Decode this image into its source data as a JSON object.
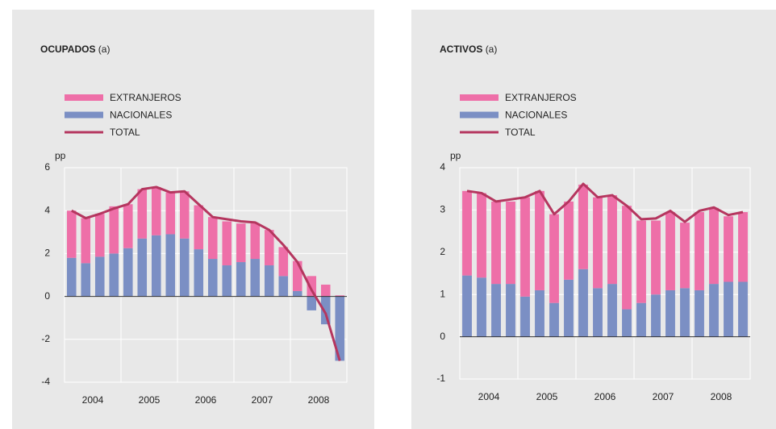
{
  "chart_data": [
    {
      "type": "stacked_bar_line",
      "title": "OCUPADOS",
      "title_note": "(a)",
      "ylabel": "pp",
      "categories": [
        "2004",
        null,
        null,
        null,
        "2005",
        null,
        null,
        null,
        "2006",
        null,
        null,
        null,
        "2007",
        null,
        null,
        null,
        "2008",
        null,
        null,
        null
      ],
      "series": [
        {
          "name": "EXTRANJEROS",
          "type": "bar",
          "color": "#ee6fa8",
          "values": [
            2.2,
            2.1,
            2.0,
            2.2,
            2.05,
            2.3,
            2.25,
            1.95,
            2.2,
            2.05,
            1.95,
            2.05,
            1.8,
            1.65,
            1.65,
            1.35,
            1.4,
            0.95,
            0.55,
            0.05
          ]
        },
        {
          "name": "NACIONALES",
          "type": "bar",
          "color": "#7b8fc4",
          "values": [
            1.8,
            1.55,
            1.85,
            2.0,
            2.25,
            2.7,
            2.85,
            2.9,
            2.7,
            2.2,
            1.75,
            1.45,
            1.6,
            1.75,
            1.45,
            0.95,
            0.25,
            -0.65,
            -1.3,
            -3.0
          ]
        },
        {
          "name": "TOTAL",
          "type": "line",
          "color": "#b5365f",
          "values": [
            4.0,
            3.65,
            3.85,
            4.1,
            4.3,
            5.0,
            5.1,
            4.85,
            4.9,
            4.3,
            3.7,
            3.6,
            3.5,
            3.45,
            3.1,
            2.4,
            1.6,
            0.3,
            -0.8,
            -3.0
          ]
        }
      ],
      "ylim": [
        -4,
        6
      ],
      "yticks": [
        -4,
        -2,
        0,
        2,
        4,
        6
      ],
      "grid": true
    },
    {
      "type": "stacked_bar_line",
      "title": "ACTIVOS",
      "title_note": "(a)",
      "ylabel": "pp",
      "categories": [
        "2004",
        null,
        null,
        null,
        "2005",
        null,
        null,
        null,
        "2006",
        null,
        null,
        null,
        "2007",
        null,
        null,
        null,
        "2008",
        null,
        null,
        null
      ],
      "series": [
        {
          "name": "EXTRANJEROS",
          "type": "bar",
          "color": "#ee6fa8",
          "values": [
            2.0,
            2.0,
            1.95,
            1.95,
            2.35,
            2.35,
            2.1,
            1.85,
            2.0,
            2.15,
            2.1,
            2.45,
            1.95,
            1.75,
            1.85,
            1.55,
            1.85,
            1.8,
            1.55,
            1.65
          ]
        },
        {
          "name": "NACIONALES",
          "type": "bar",
          "color": "#7b8fc4",
          "values": [
            1.45,
            1.4,
            1.25,
            1.25,
            0.95,
            1.1,
            0.8,
            1.35,
            1.6,
            1.15,
            1.25,
            0.65,
            0.8,
            1.0,
            1.1,
            1.15,
            1.1,
            1.25,
            1.3,
            1.3
          ]
        },
        {
          "name": "TOTAL",
          "type": "line",
          "color": "#b5365f",
          "values": [
            3.45,
            3.4,
            3.2,
            3.25,
            3.3,
            3.45,
            2.9,
            3.2,
            3.62,
            3.3,
            3.35,
            3.1,
            2.78,
            2.8,
            2.98,
            2.72,
            2.98,
            3.06,
            2.88,
            2.95
          ]
        }
      ],
      "ylim": [
        -1,
        4
      ],
      "yticks": [
        -1,
        0,
        1,
        2,
        3,
        4
      ],
      "grid": true
    }
  ]
}
